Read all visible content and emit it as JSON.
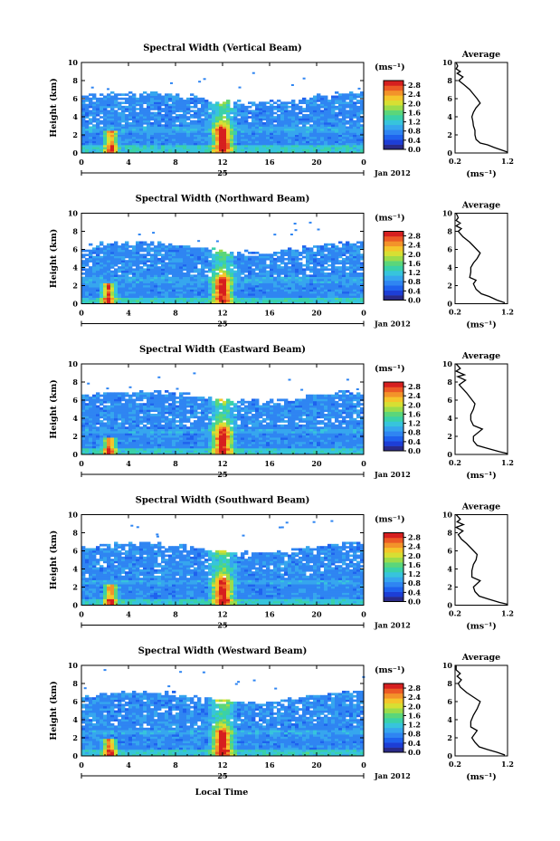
{
  "colors": {
    "colorbar": [
      "#2a2a88",
      "#1d3ed6",
      "#1f62ee",
      "#2f85f2",
      "#36a6ee",
      "#37c4dc",
      "#3ad1a8",
      "#5bd67a",
      "#9cdc4a",
      "#d7df33",
      "#f5c52b",
      "#f3932a",
      "#ec5a25",
      "#d61f1f"
    ],
    "background": "#ffffff",
    "line": "#000000"
  },
  "figure": {
    "footer_xlabel": "Local Time"
  },
  "chart_data": [
    {
      "type": "heatmap",
      "title": "Spectral Width (Vertical Beam)",
      "ylabel": "Height (km)",
      "ylim": [
        0,
        10
      ],
      "yticks": [
        "0",
        "2",
        "4",
        "6",
        "8",
        "10"
      ],
      "xlim": [
        0,
        24
      ],
      "xticks": [
        "0",
        "4",
        "8",
        "12",
        "16",
        "20",
        "0"
      ],
      "date_day": "25",
      "date_month": "Jan 2012",
      "colorbar_label": "(ms⁻¹)",
      "colorbar_ticks": [
        "0.0",
        "0.4",
        "0.8",
        "1.2",
        "1.6",
        "2.0",
        "2.4",
        "2.8"
      ],
      "colorbar_range": [
        0,
        3.0
      ],
      "features": {
        "cloud_top_km": 6.2,
        "bright_column_hour": 12,
        "bright_column_top_km": 6.5,
        "low_patch_hour": 2.5,
        "low_patch_top_km": 2.5
      },
      "profile": {
        "title": "Average",
        "xlabel": "(ms⁻¹)",
        "xlim": [
          0.2,
          1.2
        ],
        "xticks": [
          "0.2",
          "1.2"
        ],
        "ylim": [
          0,
          10
        ],
        "yticks": [
          "0",
          "2",
          "4",
          "6",
          "8",
          "10"
        ],
        "points": [
          [
            1.2,
            0.1
          ],
          [
            1.1,
            0.3
          ],
          [
            0.95,
            0.6
          ],
          [
            0.82,
            0.9
          ],
          [
            0.68,
            1.1
          ],
          [
            0.6,
            1.5
          ],
          [
            0.58,
            2.0
          ],
          [
            0.58,
            2.5
          ],
          [
            0.55,
            3.0
          ],
          [
            0.54,
            3.5
          ],
          [
            0.52,
            4.0
          ],
          [
            0.55,
            4.5
          ],
          [
            0.6,
            5.0
          ],
          [
            0.68,
            5.5
          ],
          [
            0.62,
            6.0
          ],
          [
            0.55,
            6.5
          ],
          [
            0.48,
            7.0
          ],
          [
            0.38,
            7.5
          ],
          [
            0.27,
            8.0
          ],
          [
            0.35,
            8.4
          ],
          [
            0.24,
            8.8
          ],
          [
            0.3,
            9.0
          ],
          [
            0.22,
            9.3
          ],
          [
            0.25,
            9.6
          ],
          [
            0.22,
            10.0
          ]
        ]
      }
    },
    {
      "type": "heatmap",
      "title": "Spectral Width (Northward Beam)",
      "ylabel": "Height (km)",
      "ylim": [
        0,
        10
      ],
      "yticks": [
        "0",
        "2",
        "4",
        "6",
        "8",
        "10"
      ],
      "xlim": [
        0,
        24
      ],
      "xticks": [
        "0",
        "4",
        "8",
        "12",
        "16",
        "20",
        "0"
      ],
      "date_day": "25",
      "date_month": "Jan 2012",
      "colorbar_label": "(ms⁻¹)",
      "colorbar_ticks": [
        "0.0",
        "0.4",
        "0.8",
        "1.2",
        "1.6",
        "2.0",
        "2.4",
        "2.8"
      ],
      "colorbar_range": [
        0,
        3.0
      ],
      "features": {
        "cloud_top_km": 6.3,
        "bright_column_hour": 12,
        "bright_column_top_km": 6.7,
        "low_patch_hour": 2.3,
        "low_patch_top_km": 2.2
      },
      "profile": {
        "title": "Average",
        "xlabel": "(ms⁻¹)",
        "xlim": [
          0.2,
          1.2
        ],
        "xticks": [
          "0.2",
          "1.2"
        ],
        "ylim": [
          0,
          10
        ],
        "yticks": [
          "0",
          "2",
          "4",
          "6",
          "8",
          "10"
        ],
        "points": [
          [
            1.15,
            0.1
          ],
          [
            1.0,
            0.4
          ],
          [
            0.85,
            0.8
          ],
          [
            0.7,
            1.1
          ],
          [
            0.6,
            1.6
          ],
          [
            0.55,
            2.2
          ],
          [
            0.6,
            2.6
          ],
          [
            0.48,
            2.9
          ],
          [
            0.5,
            3.5
          ],
          [
            0.5,
            4.0
          ],
          [
            0.55,
            4.5
          ],
          [
            0.62,
            5.0
          ],
          [
            0.68,
            5.6
          ],
          [
            0.58,
            6.2
          ],
          [
            0.48,
            6.8
          ],
          [
            0.35,
            7.4
          ],
          [
            0.26,
            8.0
          ],
          [
            0.32,
            8.3
          ],
          [
            0.22,
            8.6
          ],
          [
            0.3,
            8.9
          ],
          [
            0.22,
            9.2
          ],
          [
            0.26,
            9.5
          ],
          [
            0.22,
            10.0
          ]
        ]
      }
    },
    {
      "type": "heatmap",
      "title": "Spectral Width (Eastward Beam)",
      "ylabel": "Height (km)",
      "ylim": [
        0,
        10
      ],
      "yticks": [
        "0",
        "2",
        "4",
        "6",
        "8",
        "10"
      ],
      "xlim": [
        0,
        24
      ],
      "xticks": [
        "0",
        "4",
        "8",
        "12",
        "16",
        "20",
        "0"
      ],
      "date_day": "25",
      "date_month": "Jan 2012",
      "colorbar_label": "(ms⁻¹)",
      "colorbar_ticks": [
        "0.0",
        "0.4",
        "0.8",
        "1.2",
        "1.6",
        "2.0",
        "2.4",
        "2.8"
      ],
      "colorbar_range": [
        0,
        3.0
      ],
      "features": {
        "cloud_top_km": 6.5,
        "bright_column_hour": 12,
        "bright_column_top_km": 6.6,
        "low_patch_hour": 2.4,
        "low_patch_top_km": 2.0
      },
      "profile": {
        "title": "Average",
        "xlabel": "(ms⁻¹)",
        "xlim": [
          0.2,
          1.2
        ],
        "xticks": [
          "0.2",
          "1.2"
        ],
        "ylim": [
          0,
          10
        ],
        "yticks": [
          "0",
          "2",
          "4",
          "6",
          "8",
          "10"
        ],
        "points": [
          [
            1.2,
            0.1
          ],
          [
            1.05,
            0.3
          ],
          [
            0.8,
            0.7
          ],
          [
            0.62,
            1.0
          ],
          [
            0.55,
            1.5
          ],
          [
            0.55,
            2.0
          ],
          [
            0.72,
            2.8
          ],
          [
            0.55,
            3.2
          ],
          [
            0.5,
            3.8
          ],
          [
            0.5,
            4.4
          ],
          [
            0.55,
            5.0
          ],
          [
            0.58,
            5.6
          ],
          [
            0.5,
            6.2
          ],
          [
            0.42,
            6.8
          ],
          [
            0.34,
            7.3
          ],
          [
            0.28,
            7.7
          ],
          [
            0.4,
            8.2
          ],
          [
            0.25,
            8.6
          ],
          [
            0.38,
            8.8
          ],
          [
            0.22,
            9.2
          ],
          [
            0.3,
            9.5
          ],
          [
            0.22,
            10.0
          ]
        ]
      }
    },
    {
      "type": "heatmap",
      "title": "Spectral Width (Southward Beam)",
      "ylabel": "Height (km)",
      "ylim": [
        0,
        10
      ],
      "yticks": [
        "0",
        "2",
        "4",
        "6",
        "8",
        "10"
      ],
      "xlim": [
        0,
        24
      ],
      "xticks": [
        "0",
        "4",
        "8",
        "12",
        "16",
        "20",
        "0"
      ],
      "date_day": "25",
      "date_month": "Jan 2012",
      "colorbar_label": "(ms⁻¹)",
      "colorbar_ticks": [
        "0.0",
        "0.4",
        "0.8",
        "1.2",
        "1.6",
        "2.0",
        "2.4",
        "2.8"
      ],
      "colorbar_range": [
        0,
        3.0
      ],
      "features": {
        "cloud_top_km": 6.4,
        "bright_column_hour": 12,
        "bright_column_top_km": 6.2,
        "low_patch_hour": 2.5,
        "low_patch_top_km": 2.3
      },
      "profile": {
        "title": "Average",
        "xlabel": "(ms⁻¹)",
        "xlim": [
          0.2,
          1.2
        ],
        "xticks": [
          "0.2",
          "1.2"
        ],
        "ylim": [
          0,
          10
        ],
        "yticks": [
          "0",
          "2",
          "4",
          "6",
          "8",
          "10"
        ],
        "points": [
          [
            1.2,
            0.1
          ],
          [
            1.05,
            0.3
          ],
          [
            0.82,
            0.7
          ],
          [
            0.66,
            1.0
          ],
          [
            0.58,
            1.5
          ],
          [
            0.55,
            2.0
          ],
          [
            0.68,
            2.7
          ],
          [
            0.52,
            3.1
          ],
          [
            0.52,
            3.8
          ],
          [
            0.55,
            4.5
          ],
          [
            0.6,
            5.0
          ],
          [
            0.62,
            5.6
          ],
          [
            0.52,
            6.2
          ],
          [
            0.42,
            6.8
          ],
          [
            0.32,
            7.3
          ],
          [
            0.26,
            7.8
          ],
          [
            0.35,
            8.2
          ],
          [
            0.22,
            8.6
          ],
          [
            0.36,
            8.9
          ],
          [
            0.24,
            9.2
          ],
          [
            0.3,
            9.5
          ],
          [
            0.22,
            10.0
          ]
        ]
      }
    },
    {
      "type": "heatmap",
      "title": "Spectral Width (Westward Beam)",
      "ylabel": "Height (km)",
      "ylim": [
        0,
        10
      ],
      "yticks": [
        "0",
        "2",
        "4",
        "6",
        "8",
        "10"
      ],
      "xlim": [
        0,
        24
      ],
      "xticks": [
        "0",
        "4",
        "8",
        "12",
        "16",
        "20",
        "0"
      ],
      "date_day": "25",
      "date_month": "Jan 2012",
      "colorbar_label": "(ms⁻¹)",
      "colorbar_ticks": [
        "0.0",
        "0.4",
        "0.8",
        "1.2",
        "1.6",
        "2.0",
        "2.4",
        "2.8"
      ],
      "colorbar_range": [
        0,
        3.0
      ],
      "features": {
        "cloud_top_km": 6.6,
        "bright_column_hour": 12,
        "bright_column_top_km": 6.5,
        "low_patch_hour": 2.4,
        "low_patch_top_km": 2.0
      },
      "profile": {
        "title": "Average",
        "xlabel": "(ms⁻¹)",
        "xlim": [
          0.2,
          1.2
        ],
        "xticks": [
          "0.2",
          "1.2"
        ],
        "ylim": [
          0,
          10
        ],
        "yticks": [
          "0",
          "2",
          "4",
          "6",
          "8",
          "10"
        ],
        "points": [
          [
            1.15,
            0.1
          ],
          [
            1.0,
            0.4
          ],
          [
            0.82,
            0.7
          ],
          [
            0.66,
            1.0
          ],
          [
            0.58,
            1.5
          ],
          [
            0.52,
            2.0
          ],
          [
            0.62,
            2.8
          ],
          [
            0.5,
            3.2
          ],
          [
            0.5,
            3.8
          ],
          [
            0.55,
            4.5
          ],
          [
            0.62,
            5.2
          ],
          [
            0.68,
            6.0
          ],
          [
            0.55,
            6.5
          ],
          [
            0.42,
            7.0
          ],
          [
            0.3,
            7.6
          ],
          [
            0.26,
            8.0
          ],
          [
            0.32,
            8.4
          ],
          [
            0.24,
            8.8
          ],
          [
            0.3,
            9.1
          ],
          [
            0.22,
            9.5
          ],
          [
            0.22,
            10.0
          ]
        ]
      }
    }
  ]
}
